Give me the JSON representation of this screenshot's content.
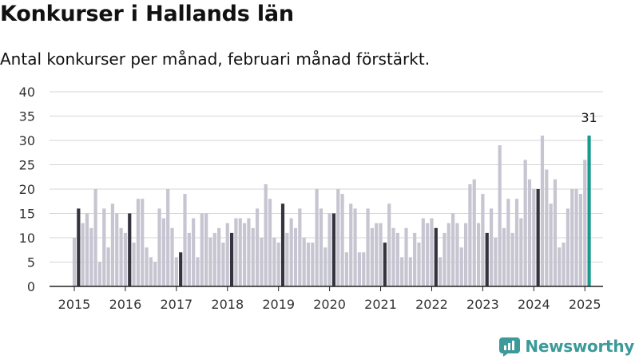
{
  "header": {
    "title": "Konkurser i Hallands län",
    "subtitle": "Antal konkurser per månad, februari månad förstärkt."
  },
  "brand": {
    "name": "Newsworthy",
    "logo_icon": "newsworthy-logo-icon"
  },
  "colors": {
    "bar": "#c6c5d1",
    "february": "#34343f",
    "latest": "#1a9a8f",
    "grid": "#d4d4d4",
    "axis": "#222222",
    "brand": "#3d9a9a"
  },
  "chart_data": {
    "type": "bar",
    "title": "Konkurser i Hallands län",
    "subtitle": "Antal konkurser per månad, februari månad förstärkt.",
    "xlabel": "",
    "ylabel": "",
    "ylim": [
      0,
      40
    ],
    "yticks": [
      0,
      5,
      10,
      15,
      20,
      25,
      30,
      35,
      40
    ],
    "xtick_labels": [
      "2015",
      "2016",
      "2017",
      "2018",
      "2019",
      "2020",
      "2021",
      "2022",
      "2023",
      "2024",
      "2025"
    ],
    "grid": true,
    "legend": "none",
    "start": "2015-01",
    "end": "2025-02",
    "highlight_month": "february",
    "latest_label": "31",
    "values": [
      10,
      16,
      13,
      15,
      12,
      20,
      5,
      16,
      8,
      17,
      15,
      12,
      11,
      15,
      9,
      18,
      18,
      8,
      6,
      5,
      16,
      14,
      20,
      12,
      6,
      7,
      19,
      11,
      14,
      6,
      15,
      15,
      10,
      11,
      12,
      9,
      13,
      11,
      14,
      14,
      13,
      14,
      12,
      16,
      10,
      21,
      18,
      10,
      9,
      17,
      11,
      14,
      12,
      16,
      10,
      9,
      9,
      20,
      16,
      8,
      15,
      15,
      20,
      19,
      7,
      17,
      16,
      7,
      7,
      16,
      12,
      13,
      13,
      9,
      17,
      12,
      11,
      6,
      12,
      6,
      11,
      9,
      14,
      13,
      14,
      12,
      6,
      11,
      13,
      15,
      13,
      8,
      13,
      21,
      22,
      13,
      19,
      11,
      16,
      10,
      29,
      12,
      18,
      11,
      18,
      14,
      26,
      22,
      20,
      20,
      31,
      24,
      17,
      22,
      8,
      9,
      16,
      20,
      20,
      19,
      26,
      31
    ]
  }
}
